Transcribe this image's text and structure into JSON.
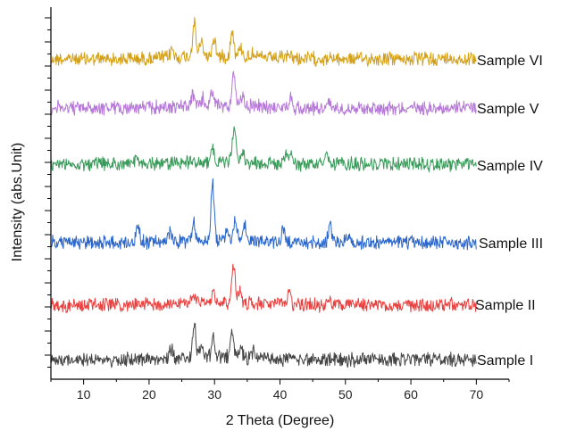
{
  "chart_data": {
    "type": "line",
    "xlabel": "2 Theta (Degree)",
    "ylabel": "Intensity (abs.Unit)",
    "xlim": [
      5,
      75
    ],
    "x_ticks": [
      10,
      20,
      30,
      40,
      50,
      60,
      70
    ],
    "y_ticks_labeled": false,
    "grid": false,
    "legend": "none (series labeled at right end of each trace)",
    "series": [
      {
        "name": "Sample VI",
        "color": "#d4a017",
        "peaks": [
          [
            23.5,
            0.25
          ],
          [
            26.9,
            1.0
          ],
          [
            28.0,
            0.45
          ],
          [
            29.9,
            0.55
          ],
          [
            32.7,
            0.8
          ],
          [
            34.0,
            0.3
          ],
          [
            36.0,
            0.2
          ],
          [
            41.5,
            0.15
          ]
        ]
      },
      {
        "name": "Sample V",
        "color": "#b678d8",
        "peaks": [
          [
            26.7,
            0.3
          ],
          [
            28.2,
            0.2
          ],
          [
            29.6,
            0.35
          ],
          [
            32.9,
            0.9
          ],
          [
            34.3,
            0.3
          ],
          [
            41.6,
            0.25
          ],
          [
            47.5,
            0.15
          ]
        ]
      },
      {
        "name": "Sample IV",
        "color": "#3a9a5a",
        "peaks": [
          [
            18.0,
            0.1
          ],
          [
            29.8,
            0.3
          ],
          [
            33.0,
            1.0
          ],
          [
            34.2,
            0.3
          ],
          [
            40.8,
            0.2
          ],
          [
            41.6,
            0.25
          ],
          [
            47.2,
            0.2
          ]
        ]
      },
      {
        "name": "Sample III",
        "color": "#2a66cc",
        "peaks": [
          [
            18.3,
            0.3
          ],
          [
            23.2,
            0.15
          ],
          [
            26.8,
            0.3
          ],
          [
            29.7,
            1.0
          ],
          [
            31.9,
            0.2
          ],
          [
            33.2,
            0.35
          ],
          [
            34.6,
            0.3
          ],
          [
            40.5,
            0.2
          ],
          [
            47.6,
            0.3
          ],
          [
            50.5,
            0.15
          ]
        ]
      },
      {
        "name": "Sample II",
        "color": "#e8403e",
        "peaks": [
          [
            26.8,
            0.2
          ],
          [
            29.8,
            0.3
          ],
          [
            32.9,
            1.0
          ],
          [
            33.9,
            0.35
          ],
          [
            41.4,
            0.3
          ],
          [
            47.5,
            0.15
          ]
        ]
      },
      {
        "name": "Sample I",
        "color": "#444444",
        "peaks": [
          [
            23.4,
            0.25
          ],
          [
            26.9,
            1.0
          ],
          [
            28.0,
            0.4
          ],
          [
            29.8,
            0.55
          ],
          [
            32.7,
            0.65
          ],
          [
            34.0,
            0.3
          ],
          [
            36.0,
            0.2
          ],
          [
            41.5,
            0.15
          ]
        ]
      }
    ]
  }
}
